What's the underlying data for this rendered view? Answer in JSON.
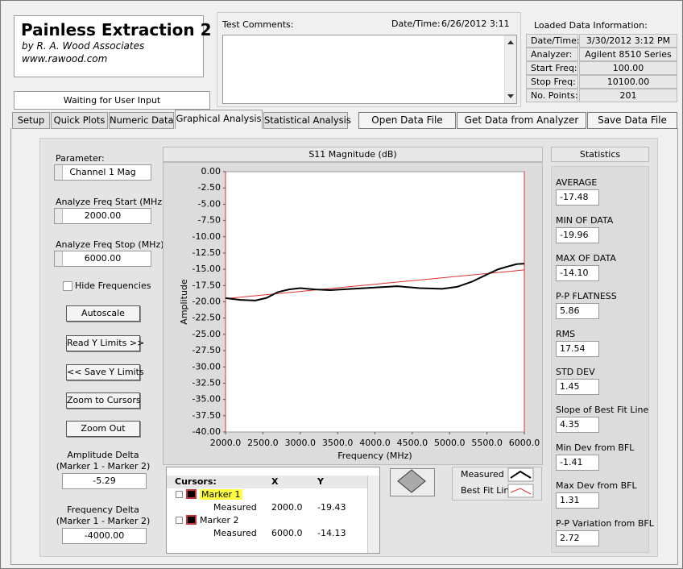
{
  "header": {
    "title": "Painless Extraction 2",
    "author": "by R. A. Wood Associates",
    "url": "www.rawood.com"
  },
  "status": "Waiting for User Input",
  "comments": {
    "label": "Test Comments:",
    "datetime_label": "Date/Time:",
    "datetime": "6/26/2012  3:11"
  },
  "loaded": {
    "title": "Loaded Data Information:",
    "rows": [
      [
        "Date/Time:",
        "3/30/2012 3:12 PM"
      ],
      [
        "Analyzer:",
        "Agilent 8510 Series"
      ],
      [
        "Start Freq:",
        "100.00"
      ],
      [
        "Stop Freq:",
        "10100.00"
      ],
      [
        "No. Points:",
        "201"
      ]
    ]
  },
  "tabs": [
    "Setup",
    "Quick Plots",
    "Numeric Data",
    "Graphical Analysis",
    "Statistical Analysis"
  ],
  "buttons": [
    "Open Data File",
    "Get Data from Analyzer",
    "Save Data File"
  ],
  "controls": {
    "parameter_label": "Parameter:",
    "parameter": "Channel 1 Mag",
    "start_label": "Analyze Freq Start (MHz)",
    "start": "2000.00",
    "stop_label": "Analyze Freq Stop (MHz)",
    "stop": "6000.00",
    "hide": "Hide Frequencies",
    "buttons": [
      "Autoscale",
      "Read Y Limits >>",
      "<< Save Y Limits",
      "Zoom to Cursors",
      "Zoom Out"
    ],
    "amp_label": [
      "Amplitude Delta",
      "(Marker 1 - Marker 2)"
    ],
    "amp": "-5.29",
    "freq_label": [
      "Frequency Delta",
      "(Marker 1 - Marker 2)"
    ],
    "freq": "-4000.00"
  },
  "chart_data": {
    "type": "line",
    "title": "S11 Magnitude (dB)",
    "x_label": "Frequency (MHz)",
    "y_label": "Amplitude",
    "xlim": [
      2000,
      6000
    ],
    "ylim": [
      -40,
      0
    ],
    "xticks": [
      {
        "value": 2000,
        "label": "2000.0"
      },
      {
        "value": 2500,
        "label": "2500.0"
      },
      {
        "value": 3000,
        "label": "3000.0"
      },
      {
        "value": 3500,
        "label": "3500.0"
      },
      {
        "value": 4000,
        "label": "4000.0"
      },
      {
        "value": 4500,
        "label": "4500.0"
      },
      {
        "value": 5000,
        "label": "5000.0"
      },
      {
        "value": 5500,
        "label": "5500.0"
      },
      {
        "value": 6000,
        "label": "6000.0"
      }
    ],
    "yticks": [
      {
        "value": 0,
        "label": "0.00"
      },
      {
        "value": -2.5,
        "label": "-2.50"
      },
      {
        "value": -5,
        "label": "-5.00"
      },
      {
        "value": -7.5,
        "label": "-7.50"
      },
      {
        "value": -10,
        "label": "-10.00"
      },
      {
        "value": -12.5,
        "label": "-12.50"
      },
      {
        "value": -15,
        "label": "-15.00"
      },
      {
        "value": -17.5,
        "label": "-17.50"
      },
      {
        "value": -20,
        "label": "-20.00"
      },
      {
        "value": -22.5,
        "label": "-22.50"
      },
      {
        "value": -25,
        "label": "-25.00"
      },
      {
        "value": -27.5,
        "label": "-27.50"
      },
      {
        "value": -30,
        "label": "-30.00"
      },
      {
        "value": -32.5,
        "label": "-32.50"
      },
      {
        "value": -35,
        "label": "-35.00"
      },
      {
        "value": -37.5,
        "label": "-37.50"
      },
      {
        "value": -40,
        "label": "-40.00"
      }
    ],
    "series": [
      {
        "name": "Measured",
        "color": "#000000",
        "x": [
          2000,
          2200,
          2400,
          2550,
          2700,
          2850,
          3000,
          3200,
          3400,
          3700,
          4000,
          4300,
          4600,
          4900,
          5100,
          5300,
          5500,
          5650,
          5800,
          5900,
          6000
        ],
        "values": [
          -19.43,
          -19.7,
          -19.8,
          -19.4,
          -18.5,
          -18.1,
          -17.9,
          -18.1,
          -18.2,
          -18.0,
          -17.8,
          -17.6,
          -17.9,
          -18.0,
          -17.7,
          -16.9,
          -15.8,
          -15.0,
          -14.5,
          -14.2,
          -14.13
        ]
      },
      {
        "name": "Best Fit Line",
        "color": "#e03030",
        "x": [
          2000,
          6000
        ],
        "values": [
          -19.5,
          -15.1
        ]
      }
    ]
  },
  "cursors": {
    "headers": [
      "Cursors:",
      "X",
      "Y"
    ],
    "rows": [
      [
        "Marker 1",
        "",
        ""
      ],
      [
        "Measured",
        "2000.0",
        "-19.43"
      ],
      [
        "Marker 2",
        "",
        ""
      ],
      [
        "Measured",
        "6000.0",
        "-14.13"
      ]
    ]
  },
  "stats": {
    "title": "Statistics",
    "items": [
      [
        "AVERAGE",
        "-17.48"
      ],
      [
        "MIN OF DATA",
        "-19.96"
      ],
      [
        "MAX OF DATA",
        "-14.10"
      ],
      [
        "P-P FLATNESS",
        "5.86"
      ],
      [
        "RMS",
        "17.54"
      ],
      [
        "STD DEV",
        "1.45"
      ],
      [
        "Slope of Best Fit Line",
        "4.35"
      ],
      [
        "Min Dev from BFL",
        "-1.41"
      ],
      [
        "Max Dev from BFL",
        "1.31"
      ],
      [
        "P-P Variation from BFL",
        "2.72"
      ]
    ]
  }
}
